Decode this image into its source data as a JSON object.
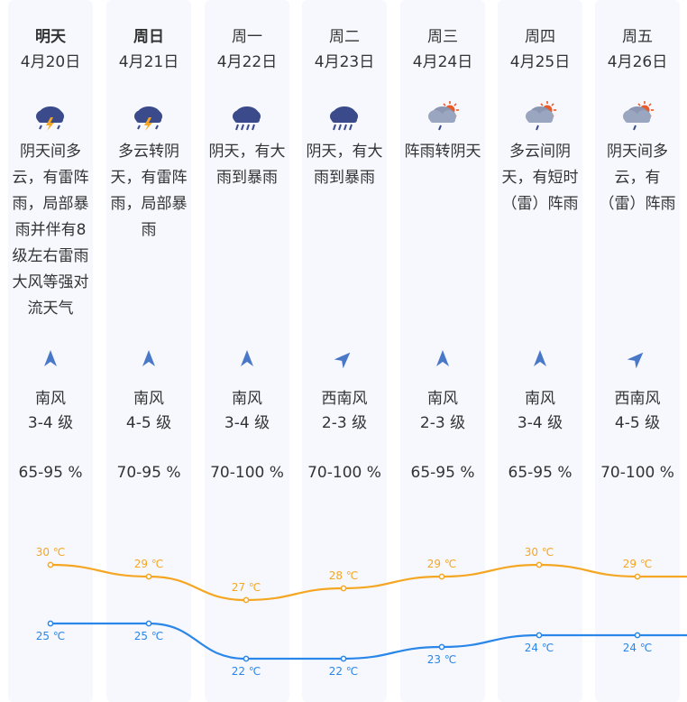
{
  "colors": {
    "high": "#f5a623",
    "low": "#2a86e8",
    "arrow": "#4a78c8",
    "column_bg": "#f6f8fe"
  },
  "days": [
    {
      "day": "明天",
      "date": "4月20日",
      "icon": "thunderstorm-icon",
      "desc": "阴天间多云，有雷阵雨，局部暴雨并伴有8级左右雷雨大风等强对流天气",
      "wind_dir": "南风",
      "wind_level": "3-4 级",
      "humidity": "65-95 %",
      "high": "30 ℃",
      "low": "25 ℃",
      "arrow_angle": 0
    },
    {
      "day": "周日",
      "date": "4月21日",
      "icon": "thunderstorm-icon",
      "desc": "多云转阴天，有雷阵雨，局部暴雨",
      "wind_dir": "南风",
      "wind_level": "4-5 级",
      "humidity": "70-95 %",
      "high": "29 ℃",
      "low": "25 ℃",
      "arrow_angle": 0
    },
    {
      "day": "周一",
      "date": "4月22日",
      "icon": "heavy-rain-icon",
      "desc": "阴天，有大雨到暴雨",
      "wind_dir": "南风",
      "wind_level": "3-4 级",
      "humidity": "70-100 %",
      "high": "27 ℃",
      "low": "22 ℃",
      "arrow_angle": 0
    },
    {
      "day": "周二",
      "date": "4月23日",
      "icon": "heavy-rain-icon",
      "desc": "阴天，有大雨到暴雨",
      "wind_dir": "西南风",
      "wind_level": "2-3 级",
      "humidity": "70-100 %",
      "high": "28 ℃",
      "low": "22 ℃",
      "arrow_angle": 45
    },
    {
      "day": "周三",
      "date": "4月24日",
      "icon": "sun-cloud-rain-icon",
      "desc": "阵雨转阴天",
      "wind_dir": "南风",
      "wind_level": "2-3 级",
      "humidity": "65-95 %",
      "high": "29 ℃",
      "low": "23 ℃",
      "arrow_angle": 0
    },
    {
      "day": "周四",
      "date": "4月25日",
      "icon": "sun-cloud-rain-icon",
      "desc": "多云间阴天，有短时（雷）阵雨",
      "wind_dir": "南风",
      "wind_level": "3-4 级",
      "humidity": "65-95 %",
      "high": "30 ℃",
      "low": "24 ℃",
      "arrow_angle": 0
    },
    {
      "day": "周五",
      "date": "4月26日",
      "icon": "sun-cloud-rain-icon",
      "desc": "阴天间多云，有（雷）阵雨",
      "wind_dir": "西南风",
      "wind_level": "4-5 级",
      "humidity": "70-100 %",
      "high": "29 ℃",
      "low": "24 ℃",
      "arrow_angle": 45
    }
  ],
  "chart_data": {
    "type": "line",
    "categories": [
      "4月20日",
      "4月21日",
      "4月22日",
      "4月23日",
      "4月24日",
      "4月25日",
      "4月26日"
    ],
    "series": [
      {
        "values": [
          30,
          29,
          27,
          28,
          29,
          30,
          29
        ]
      },
      {
        "values": [
          25,
          25,
          22,
          22,
          23,
          24,
          24
        ]
      }
    ],
    "unit": "℃"
  }
}
